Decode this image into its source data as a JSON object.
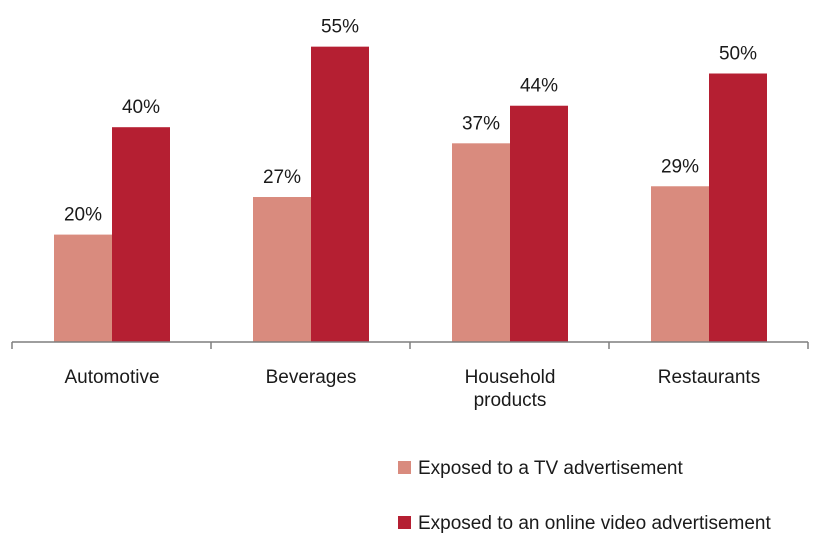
{
  "chart_data": {
    "type": "bar",
    "categories": [
      "Automotive",
      "Beverages",
      "Household products",
      "Restaurants"
    ],
    "category_lines": [
      [
        "Automotive"
      ],
      [
        "Beverages"
      ],
      [
        "Household",
        "products"
      ],
      [
        "Restaurants"
      ]
    ],
    "series": [
      {
        "name": "Exposed to a TV advertisement",
        "color": "#d98b7e",
        "values": [
          20,
          27,
          37,
          29
        ],
        "labels": [
          "20%",
          "27%",
          "37%",
          "29%"
        ]
      },
      {
        "name": "Exposed to an online video advertisement",
        "color": "#b51f32",
        "values": [
          40,
          55,
          44,
          50
        ],
        "labels": [
          "40%",
          "55%",
          "44%",
          "50%"
        ]
      }
    ],
    "ylim": [
      0,
      60
    ],
    "grid": false,
    "legend_position": "bottom-right",
    "axis_color": "#7f7f7f"
  }
}
